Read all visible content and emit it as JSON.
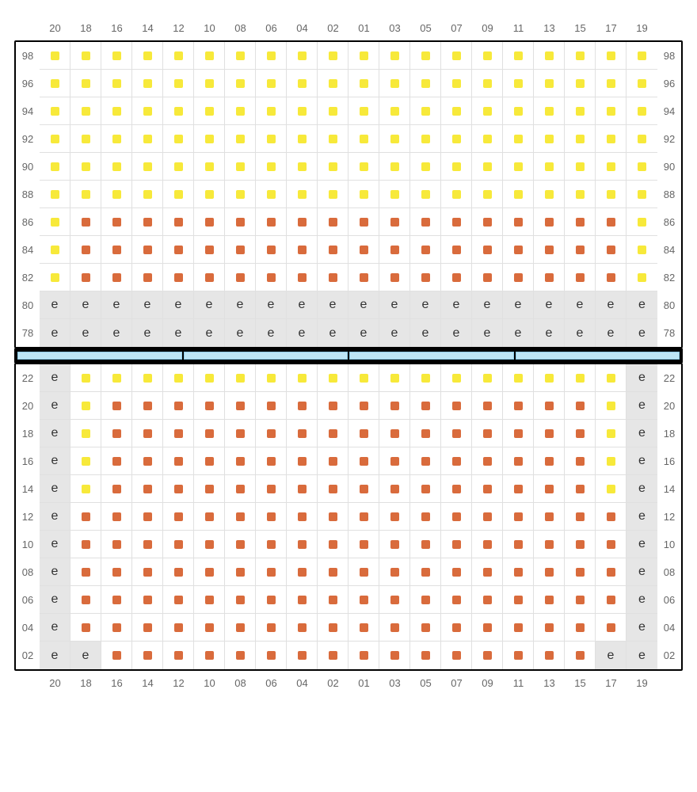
{
  "columns": [
    "20",
    "18",
    "16",
    "14",
    "12",
    "10",
    "08",
    "06",
    "04",
    "02",
    "01",
    "03",
    "05",
    "07",
    "09",
    "11",
    "13",
    "15",
    "17",
    "19"
  ],
  "colors": {
    "yellow": "#f7e93a",
    "orange": "#d96b3c",
    "empty_bg": "#e6e6e6",
    "cell_bg": "#ffffff",
    "grid_line": "#e0e0e0",
    "text": "#666666"
  },
  "cell_size": {
    "w": 39,
    "h": 35
  },
  "seat_size": 11,
  "upper": {
    "rows": [
      "98",
      "96",
      "94",
      "92",
      "90",
      "88",
      "86",
      "84",
      "82",
      "80",
      "78"
    ],
    "cells": [
      [
        "y",
        "y",
        "y",
        "y",
        "y",
        "y",
        "y",
        "y",
        "y",
        "y",
        "y",
        "y",
        "y",
        "y",
        "y",
        "y",
        "y",
        "y",
        "y",
        "y"
      ],
      [
        "y",
        "y",
        "y",
        "y",
        "y",
        "y",
        "y",
        "y",
        "y",
        "y",
        "y",
        "y",
        "y",
        "y",
        "y",
        "y",
        "y",
        "y",
        "y",
        "y"
      ],
      [
        "y",
        "y",
        "y",
        "y",
        "y",
        "y",
        "y",
        "y",
        "y",
        "y",
        "y",
        "y",
        "y",
        "y",
        "y",
        "y",
        "y",
        "y",
        "y",
        "y"
      ],
      [
        "y",
        "y",
        "y",
        "y",
        "y",
        "y",
        "y",
        "y",
        "y",
        "y",
        "y",
        "y",
        "y",
        "y",
        "y",
        "y",
        "y",
        "y",
        "y",
        "y"
      ],
      [
        "y",
        "y",
        "y",
        "y",
        "y",
        "y",
        "y",
        "y",
        "y",
        "y",
        "y",
        "y",
        "y",
        "y",
        "y",
        "y",
        "y",
        "y",
        "y",
        "y"
      ],
      [
        "y",
        "y",
        "y",
        "y",
        "y",
        "y",
        "y",
        "y",
        "y",
        "y",
        "y",
        "y",
        "y",
        "y",
        "y",
        "y",
        "y",
        "y",
        "y",
        "y"
      ],
      [
        "y",
        "o",
        "o",
        "o",
        "o",
        "o",
        "o",
        "o",
        "o",
        "o",
        "o",
        "o",
        "o",
        "o",
        "o",
        "o",
        "o",
        "o",
        "o",
        "y"
      ],
      [
        "y",
        "o",
        "o",
        "o",
        "o",
        "o",
        "o",
        "o",
        "o",
        "o",
        "o",
        "o",
        "o",
        "o",
        "o",
        "o",
        "o",
        "o",
        "o",
        "y"
      ],
      [
        "y",
        "o",
        "o",
        "o",
        "o",
        "o",
        "o",
        "o",
        "o",
        "o",
        "o",
        "o",
        "o",
        "o",
        "o",
        "o",
        "o",
        "o",
        "o",
        "y"
      ],
      [
        "e",
        "e",
        "e",
        "e",
        "e",
        "e",
        "e",
        "e",
        "e",
        "e",
        "e",
        "e",
        "e",
        "e",
        "e",
        "e",
        "e",
        "e",
        "e",
        "e"
      ],
      [
        "e",
        "e",
        "e",
        "e",
        "e",
        "e",
        "e",
        "e",
        "e",
        "e",
        "e",
        "e",
        "e",
        "e",
        "e",
        "e",
        "e",
        "e",
        "e",
        "e"
      ]
    ]
  },
  "divider_segments": 4,
  "lower": {
    "rows": [
      "22",
      "20",
      "18",
      "16",
      "14",
      "12",
      "10",
      "08",
      "06",
      "04",
      "02"
    ],
    "cells": [
      [
        "e",
        "y",
        "y",
        "y",
        "y",
        "y",
        "y",
        "y",
        "y",
        "y",
        "y",
        "y",
        "y",
        "y",
        "y",
        "y",
        "y",
        "y",
        "y",
        "e"
      ],
      [
        "e",
        "y",
        "o",
        "o",
        "o",
        "o",
        "o",
        "o",
        "o",
        "o",
        "o",
        "o",
        "o",
        "o",
        "o",
        "o",
        "o",
        "o",
        "y",
        "e"
      ],
      [
        "e",
        "y",
        "o",
        "o",
        "o",
        "o",
        "o",
        "o",
        "o",
        "o",
        "o",
        "o",
        "o",
        "o",
        "o",
        "o",
        "o",
        "o",
        "y",
        "e"
      ],
      [
        "e",
        "y",
        "o",
        "o",
        "o",
        "o",
        "o",
        "o",
        "o",
        "o",
        "o",
        "o",
        "o",
        "o",
        "o",
        "o",
        "o",
        "o",
        "y",
        "e"
      ],
      [
        "e",
        "y",
        "o",
        "o",
        "o",
        "o",
        "o",
        "o",
        "o",
        "o",
        "o",
        "o",
        "o",
        "o",
        "o",
        "o",
        "o",
        "o",
        "y",
        "e"
      ],
      [
        "e",
        "o",
        "o",
        "o",
        "o",
        "o",
        "o",
        "o",
        "o",
        "o",
        "o",
        "o",
        "o",
        "o",
        "o",
        "o",
        "o",
        "o",
        "o",
        "e"
      ],
      [
        "e",
        "o",
        "o",
        "o",
        "o",
        "o",
        "o",
        "o",
        "o",
        "o",
        "o",
        "o",
        "o",
        "o",
        "o",
        "o",
        "o",
        "o",
        "o",
        "e"
      ],
      [
        "e",
        "o",
        "o",
        "o",
        "o",
        "o",
        "o",
        "o",
        "o",
        "o",
        "o",
        "o",
        "o",
        "o",
        "o",
        "o",
        "o",
        "o",
        "o",
        "e"
      ],
      [
        "e",
        "o",
        "o",
        "o",
        "o",
        "o",
        "o",
        "o",
        "o",
        "o",
        "o",
        "o",
        "o",
        "o",
        "o",
        "o",
        "o",
        "o",
        "o",
        "e"
      ],
      [
        "e",
        "o",
        "o",
        "o",
        "o",
        "o",
        "o",
        "o",
        "o",
        "o",
        "o",
        "o",
        "o",
        "o",
        "o",
        "o",
        "o",
        "o",
        "o",
        "e"
      ],
      [
        "e",
        "e",
        "o",
        "o",
        "o",
        "o",
        "o",
        "o",
        "o",
        "o",
        "o",
        "o",
        "o",
        "o",
        "o",
        "o",
        "o",
        "o",
        "e",
        "e"
      ]
    ]
  }
}
